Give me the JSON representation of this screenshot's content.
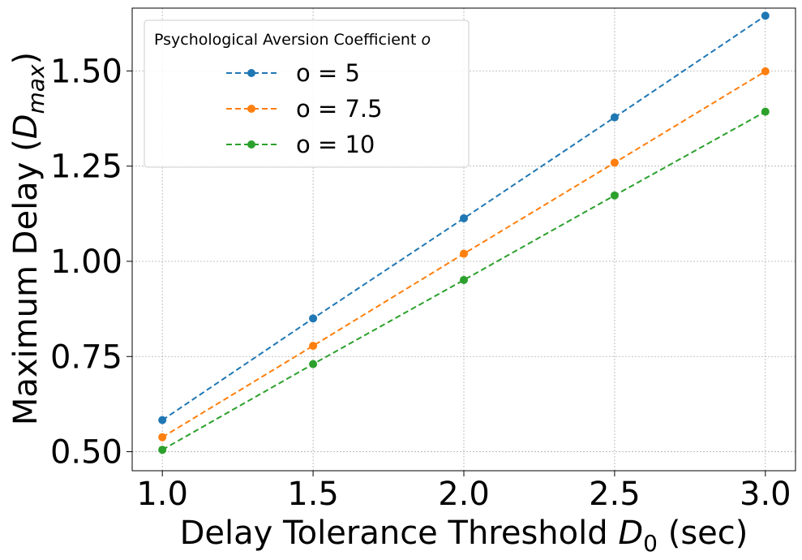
{
  "chart_data": {
    "type": "line",
    "title": "",
    "xlabel": "Delay Tolerance Threshold",
    "xlabel_symbol": "D",
    "xlabel_sub": "0",
    "xlabel_unit": "(sec)",
    "ylabel": "Maximum Delay (",
    "ylabel_symbol": "D",
    "ylabel_sub": "max",
    "ylabel_close": ")",
    "x": [
      1.0,
      1.5,
      2.0,
      2.5,
      3.0
    ],
    "xlim": [
      0.9,
      3.1
    ],
    "ylim": [
      0.45,
      1.665
    ],
    "x_ticks": [
      1.0,
      1.5,
      2.0,
      2.5,
      3.0
    ],
    "x_tick_labels": [
      "1.0",
      "1.5",
      "2.0",
      "2.5",
      "3.0"
    ],
    "y_ticks": [
      0.5,
      0.75,
      1.0,
      1.25,
      1.5
    ],
    "y_tick_labels": [
      "0.50",
      "0.75",
      "1.00",
      "1.25",
      "1.50"
    ],
    "grid": true,
    "legend_position": "top-left",
    "legend_title": "Psychological Aversion Coefficient",
    "legend_title_symbol": "o",
    "series": [
      {
        "name": "o = 5",
        "color": "#1f77b4",
        "values": [
          0.583,
          0.85,
          1.113,
          1.378,
          1.645
        ]
      },
      {
        "name": "o = 7.5",
        "color": "#ff7f0e",
        "values": [
          0.538,
          0.778,
          1.02,
          1.259,
          1.499
        ]
      },
      {
        "name": "o = 10",
        "color": "#2ca02c",
        "values": [
          0.505,
          0.73,
          0.951,
          1.173,
          1.393
        ]
      }
    ]
  }
}
